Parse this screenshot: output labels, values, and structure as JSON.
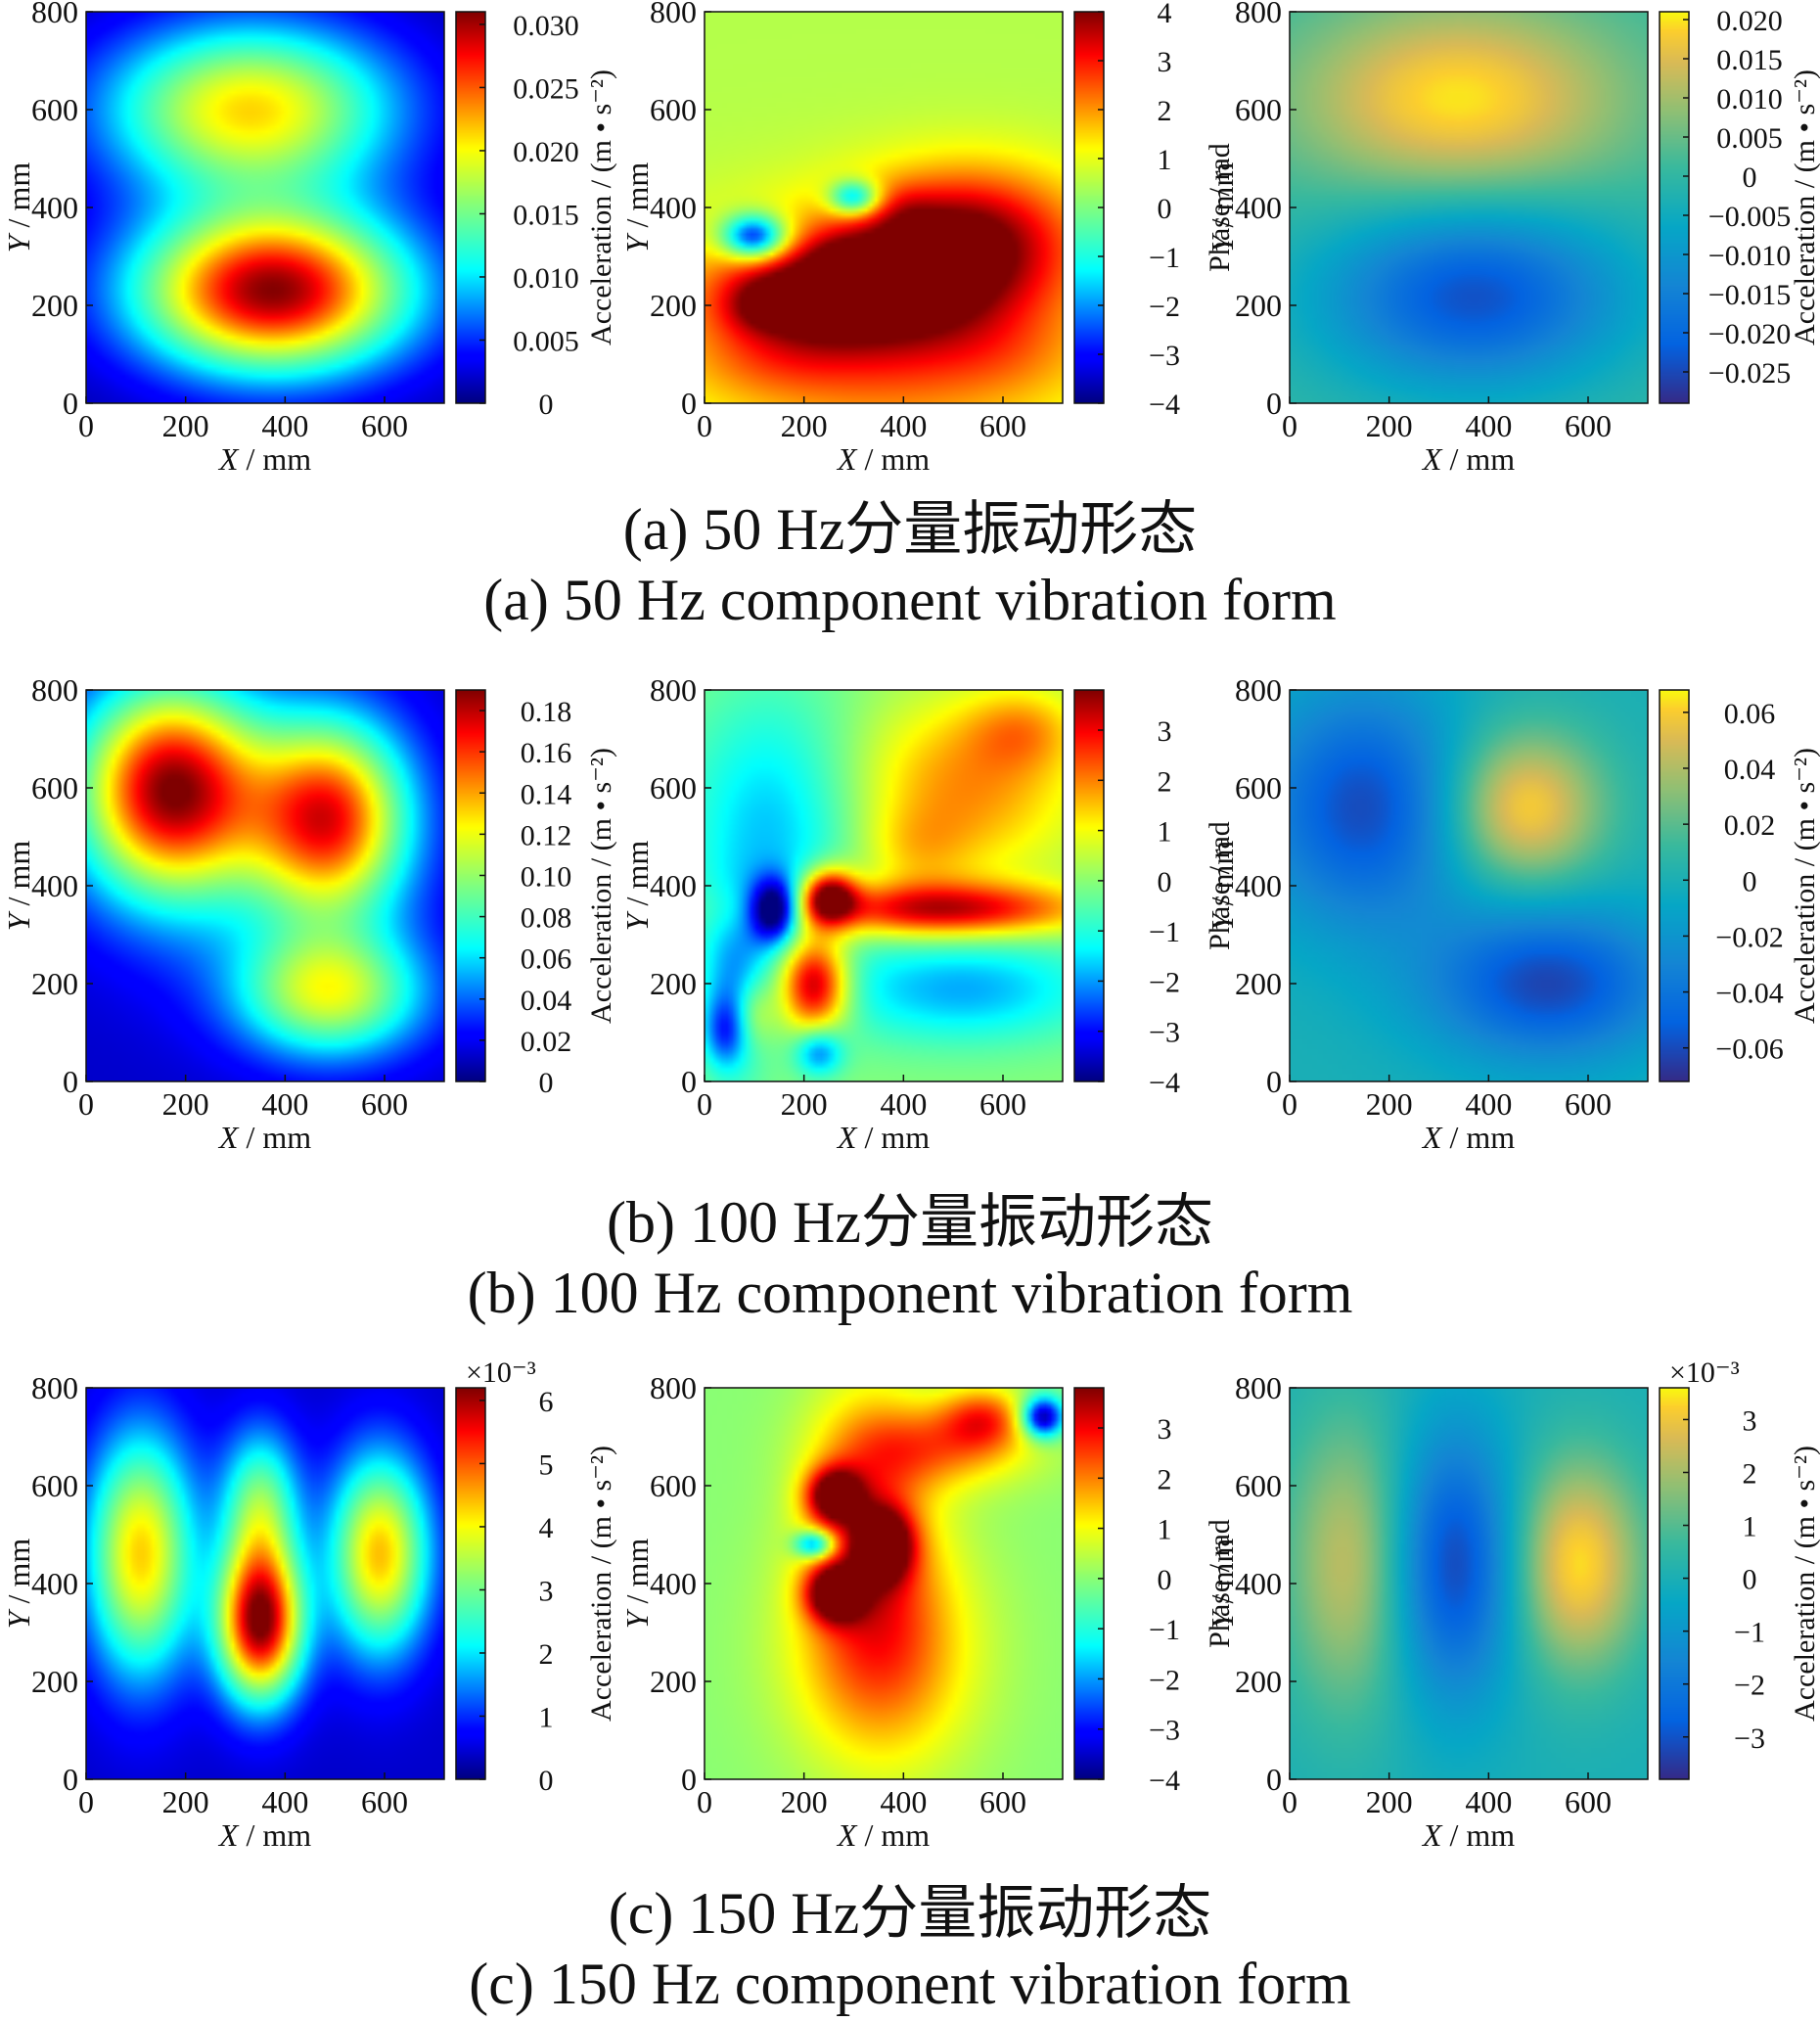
{
  "rows": [
    {
      "captions": {
        "cn": "(a) 50 Hz分量振动形态",
        "en": "(a) 50 Hz component vibration form"
      }
    },
    {
      "captions": {
        "cn": "(b) 100 Hz分量振动形态",
        "en": "(b) 100 Hz component vibration form"
      }
    },
    {
      "captions": {
        "cn": "(c) 150 Hz分量振动形态",
        "en": "(c) 150 Hz component vibration form"
      }
    }
  ],
  "chart_data": [
    {
      "type": "heatmap",
      "row": 0,
      "col": 0,
      "colormap": "jet",
      "xlabel_var": "X",
      "xlabel_unit": " / mm",
      "ylabel_var": "Y",
      "ylabel_unit": " / mm",
      "xlim": [
        0,
        720
      ],
      "ylim": [
        0,
        800
      ],
      "xticks": [
        "0",
        "200",
        "400",
        "600"
      ],
      "yticks": [
        "0",
        "200",
        "400",
        "600",
        "800"
      ],
      "colorbar": {
        "label": "Acceleration / (m • s⁻²)",
        "min": 0,
        "max": 0.031,
        "ticks": [
          0.03,
          0.025,
          0.02,
          0.015,
          0.01,
          0.005,
          0
        ],
        "tick_labels": [
          "0.030",
          "0.025",
          "0.020",
          "0.015",
          "0.010",
          "0.005",
          "0"
        ]
      },
      "multiplier": "",
      "field": {
        "base": 0.0012,
        "blobs": [
          [
            330,
            600,
            200,
            120,
            0.02
          ],
          [
            375,
            230,
            190,
            115,
            0.0295
          ]
        ]
      }
    },
    {
      "type": "heatmap",
      "row": 0,
      "col": 1,
      "colormap": "jet",
      "xlabel_var": "X",
      "xlabel_unit": " / mm",
      "ylabel_var": "Y",
      "ylabel_unit": " / mm",
      "xlim": [
        0,
        720
      ],
      "ylim": [
        0,
        800
      ],
      "xticks": [
        "0",
        "200",
        "400",
        "600"
      ],
      "yticks": [
        "0",
        "200",
        "400",
        "600",
        "800"
      ],
      "colorbar": {
        "label": "Phase / rad",
        "min": -4,
        "max": 4,
        "ticks": [
          4,
          3,
          2,
          1,
          0,
          -1,
          -2,
          -3,
          -4
        ],
        "tick_labels": [
          "4",
          "3",
          "2",
          "1",
          "0",
          "−1",
          "−2",
          "−3",
          "−4"
        ]
      },
      "multiplier": "",
      "field": {
        "base": 0.5,
        "blobs": [
          [
            360,
            150,
            300,
            160,
            2.4
          ],
          [
            200,
            220,
            130,
            70,
            2.4
          ],
          [
            560,
            350,
            150,
            100,
            2.2
          ],
          [
            420,
            280,
            140,
            100,
            2.1
          ],
          [
            130,
            80,
            110,
            50,
            0.4
          ],
          [
            610,
            100,
            100,
            60,
            0.3
          ],
          [
            100,
            340,
            45,
            32,
            -4.3
          ],
          [
            300,
            420,
            35,
            25,
            -3.2
          ],
          [
            110,
            200,
            45,
            35,
            0.8
          ],
          [
            270,
            300,
            40,
            32,
            0.6
          ],
          [
            410,
            390,
            40,
            40,
            0.4
          ]
        ]
      }
    },
    {
      "type": "heatmap",
      "row": 0,
      "col": 2,
      "colormap": "parula",
      "xlabel_var": "X",
      "xlabel_unit": " / mm",
      "ylabel_var": "Y",
      "ylabel_unit": " / mm",
      "xlim": [
        0,
        720
      ],
      "ylim": [
        0,
        800
      ],
      "xticks": [
        "0",
        "200",
        "400",
        "600"
      ],
      "yticks": [
        "0",
        "200",
        "400",
        "600",
        "800"
      ],
      "colorbar": {
        "label": "Acceleration / (m • s⁻²)",
        "min": -0.029,
        "max": 0.021,
        "ticks": [
          0.02,
          0.015,
          0.01,
          0.005,
          0,
          -0.005,
          -0.01,
          -0.015,
          -0.02,
          -0.025
        ],
        "tick_labels": [
          "0.020",
          "0.015",
          "0.010",
          "0.005",
          "0",
          "−0.005",
          "−0.010",
          "−0.015",
          "−0.020",
          "−0.025"
        ]
      },
      "multiplier": "",
      "field": {
        "base": 0,
        "blobs": [
          [
            340,
            620,
            230,
            140,
            0.02
          ],
          [
            370,
            220,
            210,
            130,
            -0.024
          ]
        ]
      }
    },
    {
      "type": "heatmap",
      "row": 1,
      "col": 0,
      "colormap": "jet",
      "xlabel_var": "X",
      "xlabel_unit": " / mm",
      "ylabel_var": "Y",
      "ylabel_unit": " / mm",
      "xlim": [
        0,
        720
      ],
      "ylim": [
        0,
        800
      ],
      "xticks": [
        "0",
        "200",
        "400",
        "600"
      ],
      "yticks": [
        "0",
        "200",
        "400",
        "600",
        "800"
      ],
      "colorbar": {
        "label": "Acceleration / (m • s⁻²)",
        "min": 0,
        "max": 0.19,
        "ticks": [
          0.18,
          0.16,
          0.14,
          0.12,
          0.1,
          0.08,
          0.06,
          0.04,
          0.02,
          0
        ],
        "tick_labels": [
          "0.18",
          "0.16",
          "0.14",
          "0.12",
          "0.10",
          "0.08",
          "0.06",
          "0.04",
          "0.02",
          "0"
        ]
      },
      "multiplier": "",
      "field": {
        "base": 0.012,
        "blobs": [
          [
            170,
            600,
            130,
            150,
            0.17
          ],
          [
            490,
            540,
            110,
            140,
            0.145
          ],
          [
            490,
            180,
            130,
            90,
            0.1
          ],
          [
            330,
            420,
            220,
            180,
            0.018
          ]
        ]
      }
    },
    {
      "type": "heatmap",
      "row": 1,
      "col": 1,
      "colormap": "jet",
      "xlabel_var": "X",
      "xlabel_unit": " / mm",
      "ylabel_var": "Y",
      "ylabel_unit": " / mm",
      "xlim": [
        0,
        720
      ],
      "ylim": [
        0,
        800
      ],
      "xticks": [
        "0",
        "200",
        "400",
        "600"
      ],
      "yticks": [
        "0",
        "200",
        "400",
        "600",
        "800"
      ],
      "colorbar": {
        "label": "Phase / rad",
        "min": -4,
        "max": 3.8,
        "ticks": [
          3,
          2,
          1,
          0,
          -1,
          -2,
          -3,
          -4
        ],
        "tick_labels": [
          "3",
          "2",
          "1",
          "0",
          "−1",
          "−2",
          "−3",
          "−4"
        ]
      },
      "multiplier": "",
      "field": {
        "base": 0,
        "blobs": [
          [
            520,
            600,
            170,
            130,
            1.9
          ],
          [
            640,
            720,
            80,
            60,
            1.2
          ],
          [
            420,
            470,
            80,
            60,
            0.8
          ],
          [
            140,
            520,
            130,
            200,
            -1.8
          ],
          [
            520,
            190,
            200,
            80,
            -1.9
          ],
          [
            60,
            180,
            50,
            130,
            -1.6
          ],
          [
            470,
            350,
            210,
            40,
            3.4
          ],
          [
            220,
            200,
            50,
            70,
            4.2
          ],
          [
            250,
            380,
            40,
            40,
            4.0
          ],
          [
            100,
            140,
            30,
            50,
            1.4
          ],
          [
            140,
            350,
            35,
            45,
            -4.3
          ],
          [
            40,
            100,
            30,
            50,
            -1.6
          ],
          [
            230,
            60,
            35,
            35,
            -2.2
          ]
        ]
      }
    },
    {
      "type": "heatmap",
      "row": 1,
      "col": 2,
      "colormap": "parula",
      "xlabel_var": "X",
      "xlabel_unit": " / mm",
      "ylabel_var": "Y",
      "ylabel_unit": " / mm",
      "xlim": [
        0,
        720
      ],
      "ylim": [
        0,
        800
      ],
      "xticks": [
        "0",
        "200",
        "400",
        "600"
      ],
      "yticks": [
        "0",
        "200",
        "400",
        "600",
        "800"
      ],
      "colorbar": {
        "label": "Acceleration / (m • s⁻²)",
        "min": -0.072,
        "max": 0.068,
        "ticks": [
          0.06,
          0.04,
          0.02,
          0,
          -0.02,
          -0.04,
          -0.06
        ],
        "tick_labels": [
          "0.06",
          "0.04",
          "0.02",
          "0",
          "−0.02",
          "−0.04",
          "−0.06"
        ]
      },
      "multiplier": "",
      "field": {
        "base": 0,
        "blobs": [
          [
            150,
            560,
            150,
            170,
            -0.06
          ],
          [
            470,
            560,
            110,
            110,
            0.064
          ],
          [
            520,
            200,
            170,
            110,
            -0.062
          ]
        ]
      }
    },
    {
      "type": "heatmap",
      "row": 2,
      "col": 0,
      "colormap": "jet",
      "xlabel_var": "X",
      "xlabel_unit": " / mm",
      "ylabel_var": "Y",
      "ylabel_unit": " / mm",
      "xlim": [
        0,
        720
      ],
      "ylim": [
        0,
        800
      ],
      "xticks": [
        "0",
        "200",
        "400",
        "600"
      ],
      "yticks": [
        "0",
        "200",
        "400",
        "600",
        "800"
      ],
      "colorbar": {
        "label": "Acceleration / (m • s⁻²)",
        "min": 0,
        "max": 6.2,
        "ticks": [
          6,
          5,
          4,
          3,
          2,
          1,
          0
        ],
        "tick_labels": [
          "6",
          "5",
          "4",
          "3",
          "2",
          "1",
          "0"
        ]
      },
      "multiplier": "×10⁻³",
      "field": {
        "base": 0.4,
        "blobs": [
          [
            110,
            460,
            75,
            170,
            3.9
          ],
          [
            350,
            320,
            60,
            110,
            5.8
          ],
          [
            350,
            560,
            55,
            110,
            2.6
          ],
          [
            590,
            460,
            70,
            140,
            4.0
          ]
        ]
      }
    },
    {
      "type": "heatmap",
      "row": 2,
      "col": 1,
      "colormap": "jet",
      "xlabel_var": "X",
      "xlabel_unit": " / mm",
      "ylabel_var": "Y",
      "ylabel_unit": " / mm",
      "xlim": [
        0,
        720
      ],
      "ylim": [
        0,
        800
      ],
      "xticks": [
        "0",
        "200",
        "400",
        "600"
      ],
      "yticks": [
        "0",
        "200",
        "400",
        "600",
        "800"
      ],
      "colorbar": {
        "label": "Phase / rad",
        "min": -4,
        "max": 3.8,
        "ticks": [
          3,
          2,
          1,
          0,
          -1,
          -2,
          -3,
          -4
        ],
        "tick_labels": [
          "3",
          "2",
          "1",
          "0",
          "−1",
          "−2",
          "−3",
          "−4"
        ]
      },
      "multiplier": "",
      "field": {
        "base": 0,
        "blobs": [
          [
            360,
            260,
            130,
            170,
            2.2
          ],
          [
            330,
            540,
            90,
            200,
            2.0
          ],
          [
            480,
            680,
            130,
            60,
            1.8
          ],
          [
            560,
            740,
            60,
            45,
            2.0
          ],
          [
            260,
            580,
            40,
            40,
            3.6
          ],
          [
            360,
            480,
            40,
            50,
            3.6
          ],
          [
            260,
            380,
            40,
            40,
            3.6
          ],
          [
            680,
            740,
            30,
            30,
            -4.2
          ],
          [
            220,
            480,
            28,
            20,
            -3.2
          ]
        ]
      }
    },
    {
      "type": "heatmap",
      "row": 2,
      "col": 2,
      "colormap": "parula",
      "xlabel_var": "X",
      "xlabel_unit": " / mm",
      "ylabel_var": "Y",
      "ylabel_unit": " / mm",
      "xlim": [
        0,
        720
      ],
      "ylim": [
        0,
        800
      ],
      "xticks": [
        "0",
        "200",
        "400",
        "600"
      ],
      "yticks": [
        "0",
        "200",
        "400",
        "600",
        "800"
      ],
      "colorbar": {
        "label": "Acceleration / (m • s⁻²)",
        "min": -3.8,
        "max": 3.6,
        "ticks": [
          3,
          2,
          1,
          0,
          -1,
          -2,
          -3
        ],
        "tick_labels": [
          "3",
          "2",
          "1",
          "0",
          "−1",
          "−2",
          "−3"
        ]
      },
      "multiplier": "×10⁻³",
      "field": {
        "base": 0,
        "blobs": [
          [
            120,
            440,
            90,
            210,
            2.4
          ],
          [
            330,
            440,
            90,
            190,
            -3.3
          ],
          [
            580,
            440,
            90,
            150,
            3.4
          ]
        ]
      }
    }
  ]
}
